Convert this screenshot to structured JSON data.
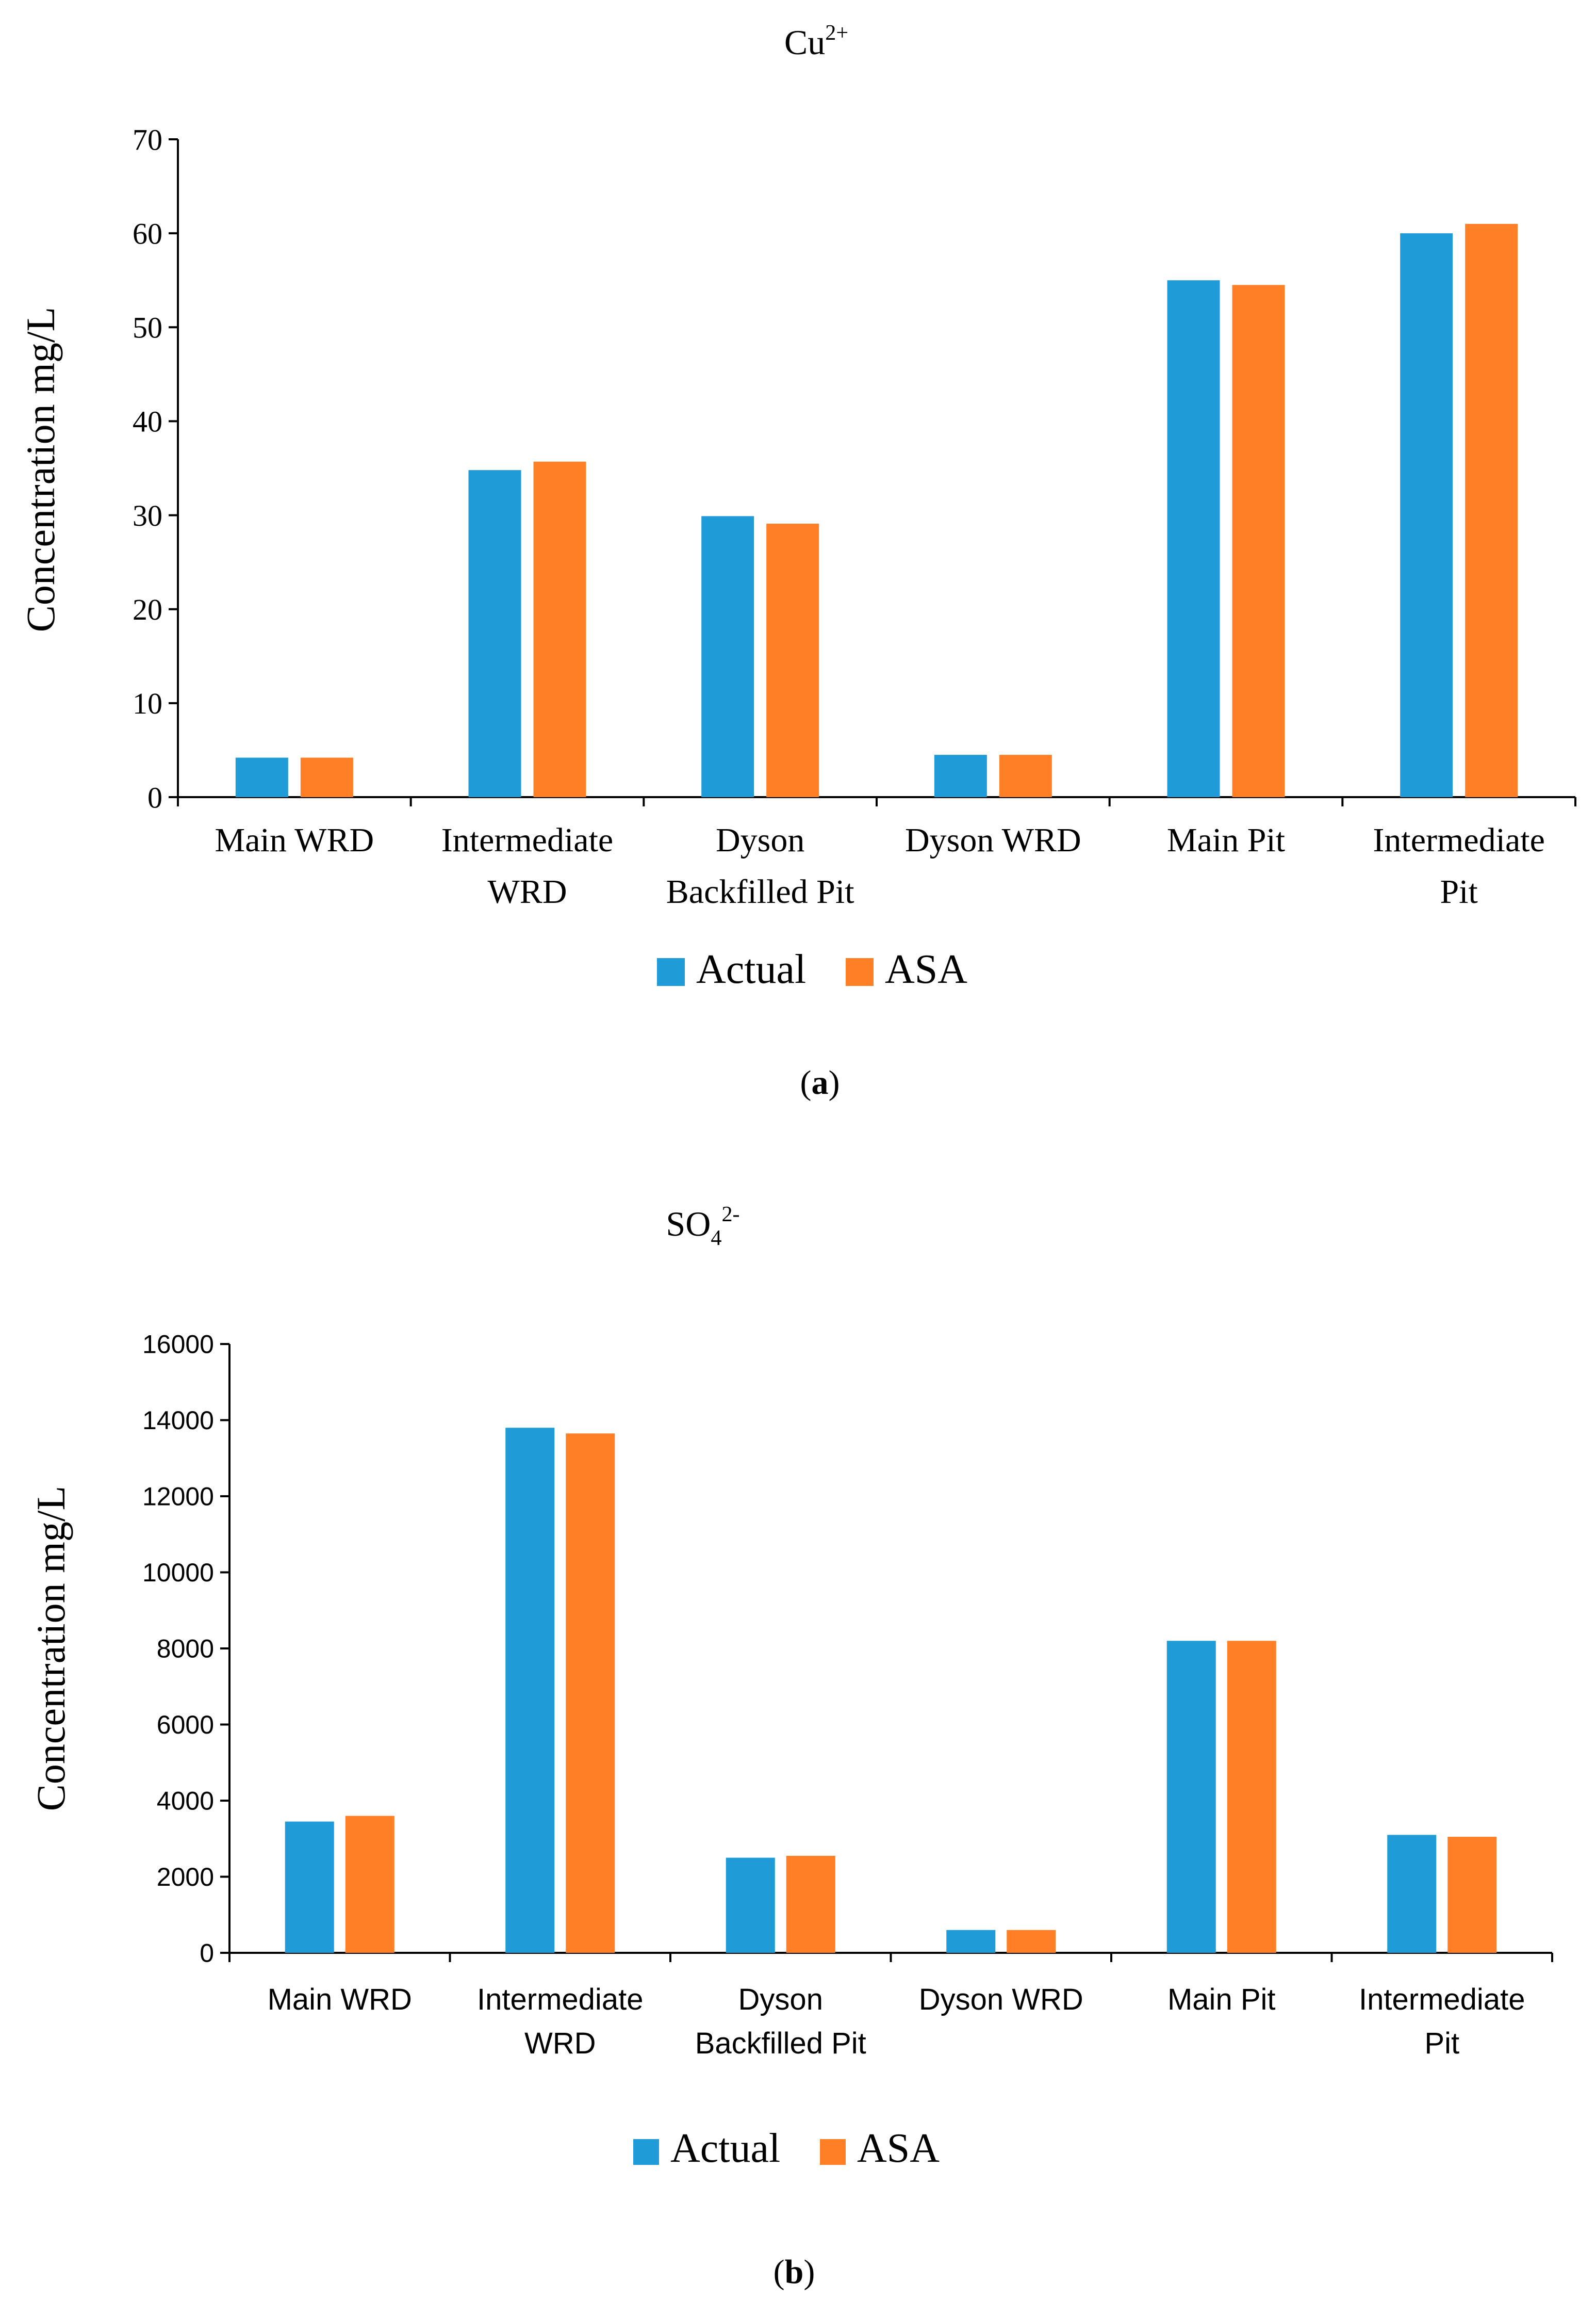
{
  "colors": {
    "actual": "#1F9BD7",
    "asa": "#FF7F27",
    "axis": "#000000"
  },
  "chart_data": [
    {
      "type": "bar",
      "title": "Cu",
      "title_sup": "2+",
      "title_sub": "",
      "ylabel": "Concentration mg/L",
      "xlabel": "",
      "ylim": [
        0,
        70
      ],
      "yticks": [
        0,
        10,
        20,
        30,
        40,
        50,
        60,
        70
      ],
      "categories": [
        [
          "Main WRD"
        ],
        [
          "Intermediate",
          "WRD"
        ],
        [
          "Dyson",
          "Backfilled Pit"
        ],
        [
          "Dyson WRD"
        ],
        [
          "Main Pit"
        ],
        [
          "Intermediate",
          "Pit"
        ]
      ],
      "series": [
        {
          "name": "Actual",
          "values": [
            4.2,
            34.8,
            29.9,
            4.5,
            55.0,
            60.0
          ]
        },
        {
          "name": "ASA",
          "values": [
            4.2,
            35.7,
            29.1,
            4.5,
            54.5,
            61.0
          ]
        }
      ],
      "legend": [
        "Actual",
        "ASA"
      ],
      "legend_position": "bottom",
      "caption": "a"
    },
    {
      "type": "bar",
      "title": "SO",
      "title_sub": "4",
      "title_sup": "2-",
      "ylabel": "Concentration mg/L",
      "xlabel": "",
      "ylim": [
        0,
        16000
      ],
      "yticks": [
        0,
        2000,
        4000,
        6000,
        8000,
        10000,
        12000,
        14000,
        16000
      ],
      "categories": [
        [
          "Main WRD"
        ],
        [
          "Intermediate",
          "WRD"
        ],
        [
          "Dyson",
          "Backfilled Pit"
        ],
        [
          "Dyson WRD"
        ],
        [
          "Main Pit"
        ],
        [
          "Intermediate",
          "Pit"
        ]
      ],
      "series": [
        {
          "name": "Actual",
          "values": [
            3450,
            13800,
            2500,
            600,
            8200,
            3100
          ]
        },
        {
          "name": "ASA",
          "values": [
            3600,
            13650,
            2550,
            600,
            8200,
            3050
          ]
        }
      ],
      "legend": [
        "Actual",
        "ASA"
      ],
      "legend_position": "bottom",
      "caption": "b"
    }
  ]
}
